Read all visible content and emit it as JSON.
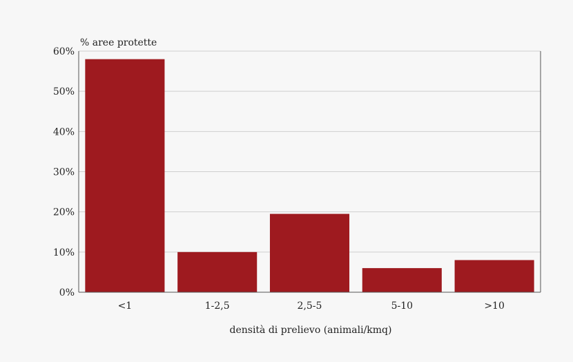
{
  "chart_data": {
    "type": "bar",
    "title": "",
    "ylabel": "% aree protette",
    "xlabel": "densità di prelievo (animali/kmq)",
    "categories": [
      "<1",
      "1-2,5",
      "2,5-5",
      "5-10",
      ">10"
    ],
    "values": [
      58,
      10,
      19.5,
      6,
      8
    ],
    "ylim": [
      0,
      60
    ],
    "yticks": [
      0,
      10,
      20,
      30,
      40,
      50,
      60
    ],
    "ytick_labels": [
      "0%",
      "10%",
      "20%",
      "30%",
      "40%",
      "50%",
      "60%"
    ],
    "grid": true,
    "bar_color": "#9e1a1f",
    "grid_color": "#cfcfcf"
  }
}
